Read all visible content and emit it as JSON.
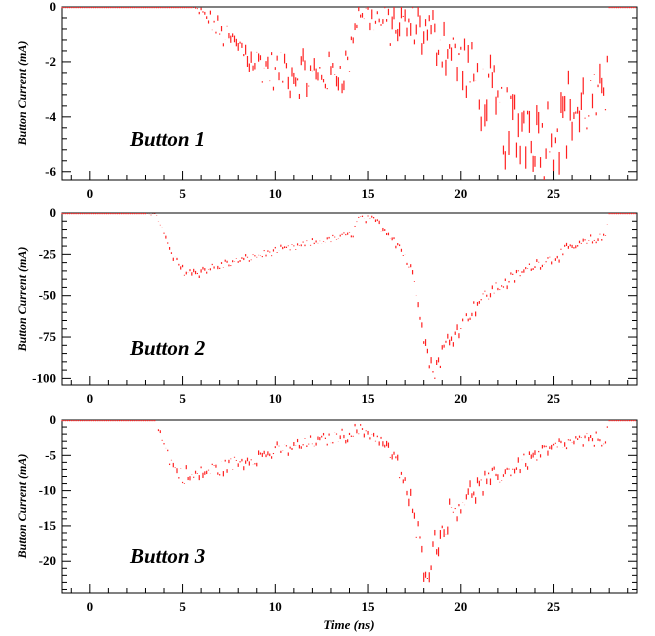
{
  "chart_data": [
    {
      "type": "scatter",
      "panel_label": "Button 1",
      "ylabel": "Button Current (mA)",
      "xlabel": "",
      "xlim": [
        -1.5,
        29.5
      ],
      "ylim": [
        -6.3,
        0
      ],
      "xticks": [
        0,
        5,
        10,
        15,
        20,
        25
      ],
      "yticks": [
        0,
        -2,
        -4,
        -6
      ],
      "grid": false,
      "series": [
        {
          "color": "#ff2020",
          "x": [
            -1.5,
            3.5,
            5.5,
            6.0,
            6.5,
            7.0,
            7.5,
            8.0,
            8.5,
            9.0,
            9.5,
            10.0,
            10.5,
            11.0,
            11.5,
            12.0,
            12.5,
            13.0,
            13.5,
            14.0,
            14.2,
            14.5,
            15.0,
            15.5,
            16.0,
            16.5,
            17.0,
            17.5,
            18.0,
            18.5,
            19.0,
            19.5,
            20.0,
            20.5,
            21.0,
            21.5,
            22.0,
            22.5,
            23.0,
            23.5,
            24.0,
            24.5,
            25.0,
            25.5,
            26.0,
            26.5,
            27.0,
            27.5,
            27.8,
            28.0,
            29.5
          ],
          "y": [
            0,
            0,
            0,
            -0.2,
            -0.5,
            -0.9,
            -1.2,
            -1.4,
            -1.7,
            -2.0,
            -2.2,
            -2.4,
            -2.3,
            -2.5,
            -2.4,
            -2.6,
            -2.4,
            -2.5,
            -2.3,
            -2.0,
            -1.0,
            -0.2,
            -0.3,
            -0.5,
            -0.6,
            -0.7,
            -0.8,
            -0.6,
            -0.9,
            -1.0,
            -1.2,
            -1.6,
            -2.0,
            -2.5,
            -2.9,
            -3.3,
            -3.8,
            -4.3,
            -4.6,
            -4.1,
            -4.4,
            -4.8,
            -4.3,
            -4.1,
            -3.7,
            -3.9,
            -3.4,
            -3.7,
            -3.3,
            0,
            0
          ],
          "spread": [
            0,
            0,
            0,
            0.2,
            0.3,
            0.4,
            0.5,
            0.5,
            0.6,
            0.6,
            0.7,
            0.7,
            0.7,
            0.8,
            0.7,
            0.8,
            0.7,
            0.7,
            0.7,
            0.6,
            0.4,
            0.3,
            0.5,
            0.6,
            0.7,
            0.8,
            0.8,
            0.8,
            0.8,
            0.8,
            0.9,
            0.9,
            1.0,
            1.1,
            1.1,
            1.2,
            1.3,
            1.4,
            1.4,
            1.4,
            1.3,
            1.4,
            1.3,
            1.3,
            1.2,
            1.2,
            1.2,
            1.1,
            1.0,
            0,
            0
          ]
        }
      ]
    },
    {
      "type": "scatter",
      "panel_label": "Button 2",
      "ylabel": "Button Current (mA)",
      "xlabel": "",
      "xlim": [
        -1.5,
        29.5
      ],
      "ylim": [
        -104,
        0
      ],
      "xticks": [
        0,
        5,
        10,
        15,
        20,
        25
      ],
      "yticks": [
        0,
        -25,
        -50,
        -75,
        -100
      ],
      "grid": false,
      "series": [
        {
          "color": "#ff2020",
          "x": [
            -1.5,
            3.0,
            3.5,
            3.8,
            4.0,
            4.3,
            4.6,
            5.0,
            5.5,
            6.0,
            7.0,
            8.0,
            9.0,
            10.0,
            11.0,
            12.0,
            13.0,
            14.0,
            14.2,
            14.5,
            15.0,
            15.5,
            16.0,
            16.5,
            17.0,
            17.3,
            17.6,
            17.9,
            18.2,
            18.5,
            18.8,
            19.0,
            19.5,
            20.0,
            20.5,
            21.0,
            22.0,
            23.0,
            24.0,
            25.0,
            26.0,
            27.0,
            27.8,
            28.0,
            29.5
          ],
          "y": [
            0,
            0,
            -1,
            -6,
            -14,
            -22,
            -29,
            -34,
            -36,
            -35,
            -32,
            -29,
            -26,
            -23,
            -21,
            -18,
            -16,
            -13,
            -12,
            -3,
            -4,
            -6,
            -11,
            -16,
            -26,
            -34,
            -46,
            -64,
            -86,
            -96,
            -90,
            -84,
            -75,
            -66,
            -60,
            -53,
            -45,
            -38,
            -31,
            -27,
            -21,
            -17,
            -14,
            0,
            0
          ],
          "spread": [
            0,
            0,
            1,
            2,
            3,
            3,
            3,
            3,
            3,
            3,
            3,
            2,
            2,
            2,
            2,
            2,
            2,
            2,
            2,
            2,
            2,
            3,
            3,
            4,
            4,
            4,
            5,
            6,
            7,
            7,
            6,
            6,
            5,
            5,
            5,
            4,
            4,
            3,
            3,
            3,
            3,
            3,
            2,
            0,
            0
          ]
        }
      ]
    },
    {
      "type": "scatter",
      "panel_label": "Button 3",
      "ylabel": "Button Current (mA)",
      "xlabel": "Time (ns)",
      "xlim": [
        -1.5,
        29.5
      ],
      "ylim": [
        -24.5,
        0
      ],
      "xticks": [
        0,
        5,
        10,
        15,
        20,
        25
      ],
      "yticks": [
        0,
        -5,
        -10,
        -15,
        -20
      ],
      "grid": false,
      "series": [
        {
          "color": "#ff2020",
          "x": [
            -1.5,
            3.5,
            3.8,
            4.0,
            4.3,
            4.6,
            5.0,
            5.5,
            6.0,
            7.0,
            8.0,
            9.0,
            10.0,
            11.0,
            12.0,
            13.0,
            14.0,
            14.2,
            14.5,
            15.0,
            15.5,
            16.0,
            16.5,
            17.0,
            17.3,
            17.6,
            17.9,
            18.2,
            18.5,
            19.0,
            19.5,
            20.0,
            21.0,
            22.0,
            23.0,
            24.0,
            25.0,
            26.0,
            27.0,
            27.8,
            28.0,
            29.5
          ],
          "y": [
            0,
            0,
            -1.5,
            -3.5,
            -5.5,
            -7.0,
            -7.8,
            -8.2,
            -7.6,
            -6.8,
            -6.0,
            -5.2,
            -4.5,
            -3.8,
            -3.2,
            -2.6,
            -2.0,
            -1.6,
            -1.5,
            -1.7,
            -2.5,
            -3.8,
            -6.0,
            -9.0,
            -12.0,
            -15.5,
            -19.0,
            -21.0,
            -18.5,
            -15.5,
            -13.0,
            -11.5,
            -9.5,
            -8.0,
            -6.5,
            -5.0,
            -4.0,
            -3.2,
            -2.8,
            -2.6,
            0,
            0
          ],
          "spread": [
            0,
            0,
            0.6,
            0.8,
            1.0,
            1.1,
            1.2,
            1.2,
            1.2,
            1.1,
            1.0,
            1.0,
            0.9,
            0.9,
            0.8,
            0.8,
            0.8,
            0.8,
            0.8,
            0.9,
            1.0,
            1.1,
            1.3,
            1.5,
            1.7,
            1.9,
            2.1,
            2.2,
            2.0,
            1.8,
            1.7,
            1.5,
            1.4,
            1.3,
            1.2,
            1.1,
            1.0,
            0.9,
            0.9,
            0.9,
            0,
            0
          ]
        }
      ]
    }
  ]
}
